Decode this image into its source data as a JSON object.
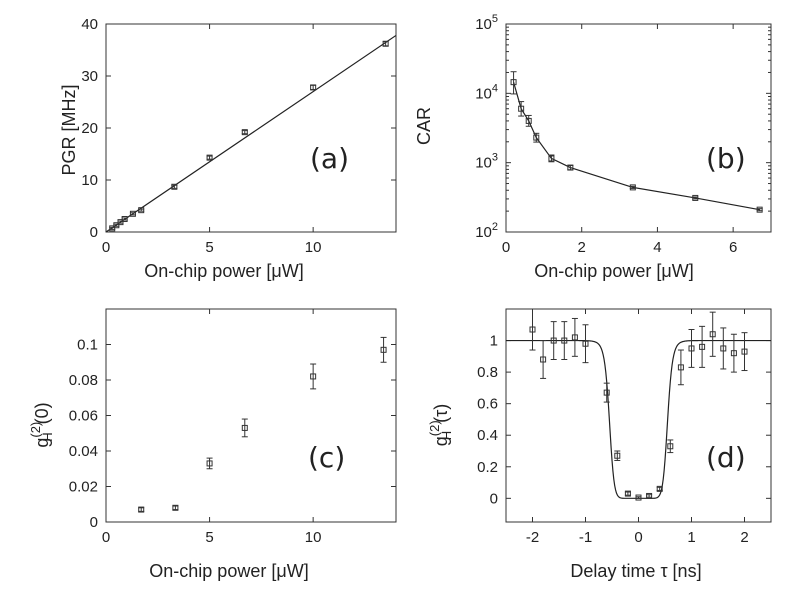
{
  "chart_data": [
    {
      "type": "scatter",
      "panel": "(a)",
      "xlabel": "On-chip power [μW]",
      "ylabel": "PGR [MHz]",
      "xlim": [
        0,
        14
      ],
      "ylim": [
        0,
        40
      ],
      "xticks": [
        0,
        5,
        10
      ],
      "yticks": [
        0,
        10,
        20,
        30,
        40
      ],
      "series": [
        {
          "x": [
            0.3,
            0.5,
            0.7,
            0.9,
            1.3,
            1.7,
            3.3,
            5.0,
            6.7,
            10.0,
            13.5
          ],
          "y": [
            0.7,
            1.3,
            1.9,
            2.5,
            3.5,
            4.2,
            8.7,
            14.3,
            19.2,
            27.8,
            36.2
          ],
          "err": [
            0.2,
            0.2,
            0.2,
            0.2,
            0.2,
            0.2,
            0.3,
            0.3,
            0.3,
            0.4,
            0.4
          ]
        }
      ],
      "fit": {
        "x": [
          0,
          14
        ],
        "y": [
          0,
          37.8
        ]
      }
    },
    {
      "type": "line",
      "panel": "(b)",
      "xlabel": "On-chip power [μW]",
      "ylabel": "CAR",
      "xlim": [
        0,
        7
      ],
      "ylim": [
        100,
        100000
      ],
      "yscale": "log",
      "xticks": [
        0,
        2,
        4,
        6
      ],
      "yticks": [
        100,
        1000,
        10000,
        100000
      ],
      "yticklabels": [
        "10^2",
        "10^3",
        "10^4",
        "10^5"
      ],
      "series": [
        {
          "x": [
            0.2,
            0.4,
            0.6,
            0.8,
            1.2,
            1.7,
            3.35,
            5.0,
            6.7
          ],
          "y": [
            14500,
            6000,
            4000,
            2300,
            1150,
            850,
            440,
            310,
            210
          ],
          "err_lo": [
            9800,
            4700,
            3350,
            1980,
            1030,
            790,
            425,
            300,
            203
          ],
          "err_hi": [
            20500,
            7600,
            4800,
            2650,
            1290,
            910,
            455,
            320,
            217
          ]
        }
      ]
    },
    {
      "type": "scatter",
      "panel": "(c)",
      "xlabel": "On-chip power [μW]",
      "ylabel": "g_H^(2)(0)",
      "xlim": [
        0,
        14
      ],
      "ylim": [
        0,
        0.12
      ],
      "xticks": [
        0,
        5,
        10
      ],
      "yticks": [
        0,
        0.02,
        0.04,
        0.06,
        0.08,
        0.1
      ],
      "series": [
        {
          "x": [
            1.7,
            3.35,
            5.0,
            6.7,
            10.0,
            13.4
          ],
          "y": [
            0.007,
            0.008,
            0.033,
            0.053,
            0.082,
            0.097
          ],
          "err": [
            0.001,
            0.001,
            0.003,
            0.005,
            0.007,
            0.007
          ]
        }
      ]
    },
    {
      "type": "scatter",
      "panel": "(d)",
      "xlabel": "Delay time τ [ns]",
      "ylabel": "g_H^(2)(τ)",
      "xlim": [
        -2.5,
        2.5
      ],
      "ylim": [
        -0.15,
        1.2
      ],
      "xticks": [
        -2,
        -1,
        0,
        1,
        2
      ],
      "yticks": [
        0,
        0.2,
        0.4,
        0.6,
        0.8,
        1
      ],
      "series": [
        {
          "x": [
            -2.0,
            -1.8,
            -1.6,
            -1.4,
            -1.2,
            -1.0,
            -0.6,
            -0.4,
            -0.2,
            0.0,
            0.2,
            0.4,
            0.6,
            0.8,
            1.0,
            1.2,
            1.4,
            1.6,
            1.8,
            2.0
          ],
          "y": [
            1.07,
            0.88,
            1.0,
            1.0,
            1.02,
            0.98,
            0.67,
            0.27,
            0.03,
            0.005,
            0.015,
            0.06,
            0.33,
            0.83,
            0.95,
            0.96,
            1.04,
            0.95,
            0.92,
            0.93
          ],
          "err": [
            0.13,
            0.12,
            0.12,
            0.12,
            0.12,
            0.12,
            0.06,
            0.03,
            0.01,
            0.005,
            0.008,
            0.01,
            0.04,
            0.11,
            0.12,
            0.13,
            0.14,
            0.13,
            0.12,
            0.12
          ]
        }
      ],
      "fit": {
        "baseline": 1.0,
        "dip_center": 0.0,
        "dip_halfwidth": 0.55
      }
    }
  ]
}
